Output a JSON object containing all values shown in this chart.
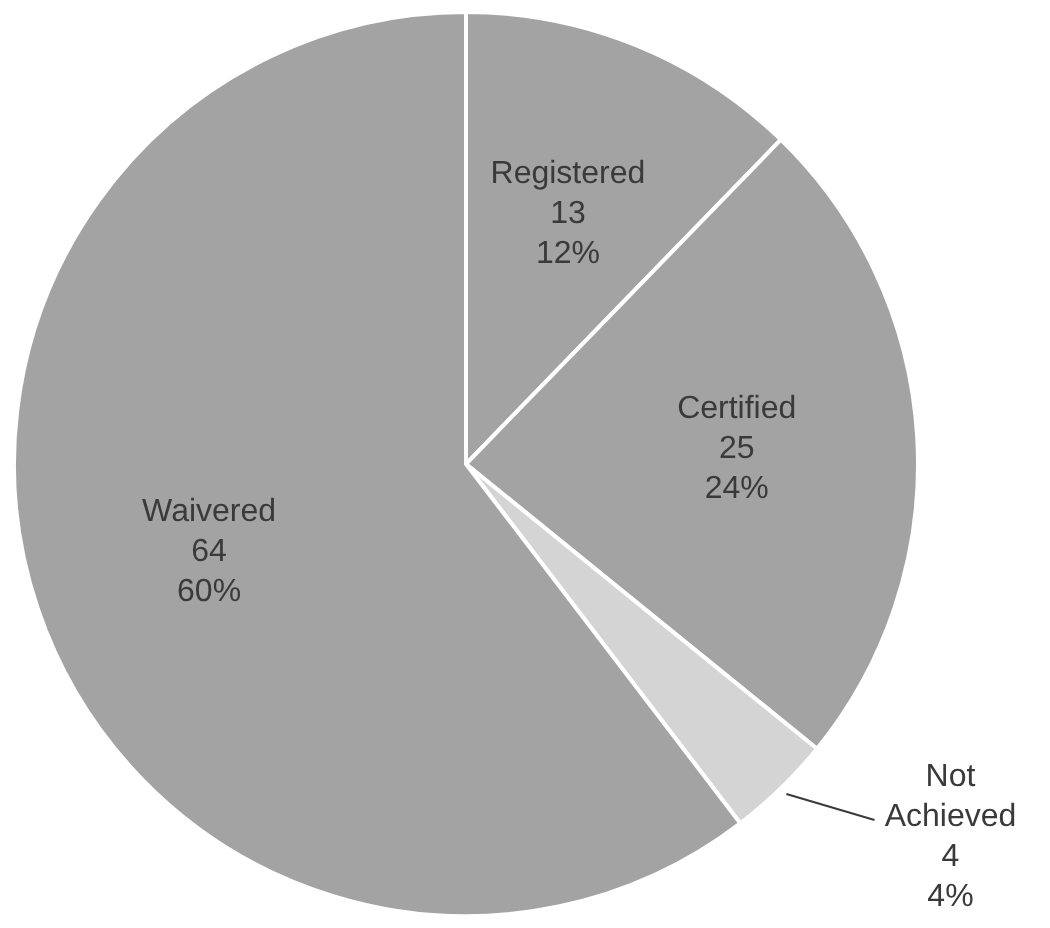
{
  "chart_data": {
    "type": "pie",
    "categories": [
      "Registered",
      "Certified",
      "Not Achieved",
      "Waivered"
    ],
    "values": [
      13,
      25,
      4,
      64
    ],
    "value_labels": [
      "13\n12%",
      "25\n24%",
      "4\n4%",
      "64\n60%"
    ],
    "colors": [
      "#a3a3a3",
      "#a3a3a3",
      "#d4d4d4",
      "#a3a3a3"
    ]
  }
}
